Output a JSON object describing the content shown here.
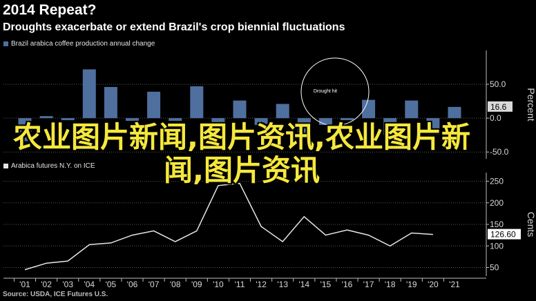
{
  "title": "2014 Repeat?",
  "subtitle": "Droughts exacerbate or extend Brazil's crop biennial fluctuations",
  "source": "Source: USDA, ICE Futures U.S.",
  "watermark": "农业图片新闻,图片资讯,农业图片新闻,图片资讯",
  "colors": {
    "background": "#000000",
    "bar": "#4f6f9f",
    "line": "#e6e6e6",
    "grid": "#5a5a5a",
    "axis_text": "#d9d9d9",
    "badge": "#ffffff"
  },
  "chart_data": [
    {
      "type": "bar",
      "legend": "Brazil arabica coffee production annual change",
      "ylabel": "Percent",
      "ylim": [
        -60,
        100
      ],
      "yticks": [
        -50,
        0,
        50
      ],
      "y_tick_labels": [
        "-50.0",
        "0.0",
        "50.0"
      ],
      "last_value_label": "16.6",
      "annotation": "Drought hit",
      "categories": [
        "'01",
        "'02",
        "'03",
        "'04",
        "'05",
        "'06",
        "'07",
        "'08",
        "'09",
        "'10",
        "'11",
        "'12",
        "'13",
        "'14",
        "'15",
        "'16",
        "'17",
        "'18",
        "'19",
        "'20",
        "'21"
      ],
      "values": [
        -34,
        3,
        -3,
        72,
        46,
        -4,
        39,
        -4,
        47,
        -18,
        26,
        -10,
        21,
        -26,
        -10,
        -3,
        27,
        -25,
        26,
        -24,
        16.6
      ],
      "grid": true
    },
    {
      "type": "line",
      "legend": "Arabica futures N.Y. on ICE",
      "ylabel": "Cents",
      "ylim": [
        30,
        270
      ],
      "yticks": [
        50,
        100,
        150,
        200,
        250
      ],
      "y_tick_labels": [
        "50",
        "100",
        "150",
        "200",
        "250"
      ],
      "last_value_label": "126.60",
      "x_tick_labels": [
        "'01",
        "'02",
        "'03",
        "'04",
        "'05",
        "'06",
        "'07",
        "'08",
        "'09",
        "'10",
        "'11",
        "'12",
        "'13",
        "'14",
        "'15",
        "'16",
        "'17",
        "'18",
        "'19",
        "'20",
        "'21"
      ],
      "x": [
        2001,
        2002,
        2003,
        2004,
        2005,
        2006,
        2007,
        2008,
        2009,
        2010,
        2011,
        2012,
        2013,
        2014,
        2015,
        2016,
        2017,
        2018,
        2019,
        2020
      ],
      "values": [
        45,
        60,
        65,
        103,
        107,
        125,
        135,
        110,
        135,
        240,
        245,
        145,
        110,
        168,
        125,
        137,
        125,
        100,
        130,
        126.6
      ],
      "grid": true
    }
  ]
}
